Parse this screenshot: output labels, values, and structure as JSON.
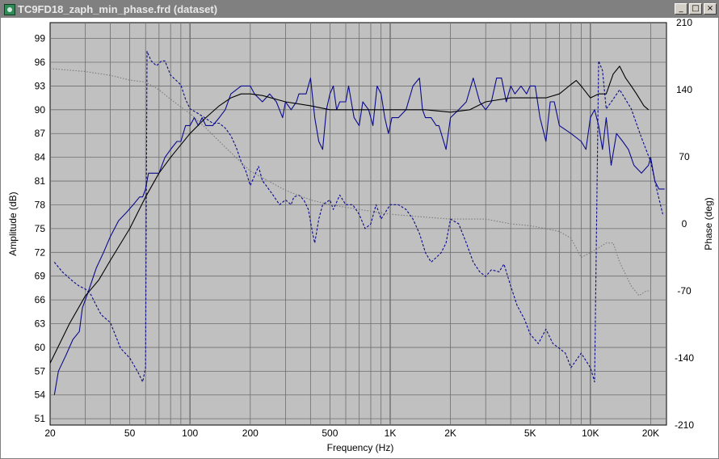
{
  "window": {
    "title": "TC9FD18_zaph_min_phase.frd (dataset)",
    "icon": "app-icon",
    "buttons": [
      {
        "name": "minimize-button",
        "glyph": "_"
      },
      {
        "name": "maximize-button",
        "glyph": "□"
      },
      {
        "name": "close-button",
        "glyph": "×"
      }
    ]
  },
  "colors": {
    "plot_bg": "#c0c0c0",
    "grid": "#6e6e6e",
    "blue": "#0a0a8c",
    "black": "#000000",
    "gray": "#7a7a7a"
  },
  "chart_data": {
    "type": "line",
    "xlabel": "Frequency (Hz)",
    "ylabel_left": "Amplitude (dB)",
    "ylabel_right": "Phase (deg)",
    "xscale": "log",
    "xlim": [
      20,
      24000
    ],
    "ylim_left": [
      50.2,
      101
    ],
    "ylim_right": [
      -210,
      210
    ],
    "grid": true,
    "x_ticks": [
      {
        "v": 20,
        "label": "20"
      },
      {
        "v": 50,
        "label": "50"
      },
      {
        "v": 100,
        "label": "100"
      },
      {
        "v": 200,
        "label": "200"
      },
      {
        "v": 500,
        "label": "500"
      },
      {
        "v": 1000,
        "label": "1K"
      },
      {
        "v": 2000,
        "label": "2K"
      },
      {
        "v": 5000,
        "label": "5K"
      },
      {
        "v": 10000,
        "label": "10K"
      },
      {
        "v": 20000,
        "label": "20K"
      }
    ],
    "y_ticks_left": [
      "99",
      "96",
      "93",
      "90",
      "87",
      "84",
      "81",
      "78",
      "75",
      "72",
      "69",
      "66",
      "63",
      "60",
      "57",
      "54",
      "51"
    ],
    "y_ticks_right": [
      "210",
      "140",
      "70",
      "0",
      "-70",
      "-140",
      "-210"
    ],
    "series": [
      {
        "axis": "left",
        "style": "solid",
        "color": "#0a0a8c",
        "points": [
          [
            21,
            54
          ],
          [
            22,
            57
          ],
          [
            24,
            59
          ],
          [
            26,
            61
          ],
          [
            28,
            62
          ],
          [
            29,
            65
          ],
          [
            31,
            67
          ],
          [
            34,
            70
          ],
          [
            37,
            72
          ],
          [
            40,
            74
          ],
          [
            44,
            76
          ],
          [
            48,
            77
          ],
          [
            52,
            78
          ],
          [
            56,
            79
          ],
          [
            58,
            79
          ],
          [
            60,
            80
          ],
          [
            62,
            82
          ],
          [
            67,
            82
          ],
          [
            70,
            82
          ],
          [
            75,
            84
          ],
          [
            80,
            85
          ],
          [
            86,
            86
          ],
          [
            90,
            86
          ],
          [
            95,
            88
          ],
          [
            100,
            88
          ],
          [
            105,
            89
          ],
          [
            110,
            88
          ],
          [
            115,
            89
          ],
          [
            120,
            88
          ],
          [
            130,
            88
          ],
          [
            140,
            89
          ],
          [
            150,
            90
          ],
          [
            160,
            92
          ],
          [
            180,
            93
          ],
          [
            200,
            93
          ],
          [
            210,
            92
          ],
          [
            230,
            91
          ],
          [
            250,
            92
          ],
          [
            270,
            91
          ],
          [
            290,
            89
          ],
          [
            300,
            91
          ],
          [
            320,
            90
          ],
          [
            340,
            91
          ],
          [
            350,
            92
          ],
          [
            370,
            92
          ],
          [
            380,
            92
          ],
          [
            400,
            94
          ],
          [
            420,
            89
          ],
          [
            440,
            86
          ],
          [
            460,
            85
          ],
          [
            480,
            90
          ],
          [
            500,
            92
          ],
          [
            520,
            93
          ],
          [
            540,
            90
          ],
          [
            560,
            91
          ],
          [
            600,
            91
          ],
          [
            620,
            93
          ],
          [
            660,
            89
          ],
          [
            700,
            88
          ],
          [
            730,
            91
          ],
          [
            780,
            90
          ],
          [
            820,
            88
          ],
          [
            860,
            93
          ],
          [
            900,
            92
          ],
          [
            940,
            89
          ],
          [
            980,
            87
          ],
          [
            1020,
            89
          ],
          [
            1100,
            89
          ],
          [
            1200,
            90
          ],
          [
            1300,
            93
          ],
          [
            1400,
            94
          ],
          [
            1450,
            90
          ],
          [
            1500,
            89
          ],
          [
            1600,
            89
          ],
          [
            1700,
            88
          ],
          [
            1750,
            88
          ],
          [
            1800,
            87
          ],
          [
            1900,
            85
          ],
          [
            2000,
            89
          ],
          [
            2200,
            90
          ],
          [
            2400,
            91
          ],
          [
            2600,
            94
          ],
          [
            2800,
            91
          ],
          [
            3000,
            90
          ],
          [
            3200,
            91
          ],
          [
            3400,
            94
          ],
          [
            3600,
            94
          ],
          [
            3800,
            91
          ],
          [
            4000,
            93
          ],
          [
            4200,
            92
          ],
          [
            4500,
            93
          ],
          [
            4800,
            92
          ],
          [
            5000,
            93
          ],
          [
            5300,
            93
          ],
          [
            5600,
            89
          ],
          [
            6000,
            86
          ],
          [
            6300,
            91
          ],
          [
            6600,
            91
          ],
          [
            7000,
            88
          ],
          [
            8000,
            87
          ],
          [
            9000,
            86
          ],
          [
            9500,
            85
          ],
          [
            10000,
            89
          ],
          [
            10500,
            90
          ],
          [
            11000,
            88
          ],
          [
            11500,
            85
          ],
          [
            12000,
            89
          ],
          [
            12700,
            83
          ],
          [
            13500,
            87
          ],
          [
            14500,
            86
          ],
          [
            15500,
            85
          ],
          [
            16500,
            83
          ],
          [
            18000,
            82
          ],
          [
            19500,
            83
          ],
          [
            20000,
            84
          ],
          [
            21000,
            81
          ],
          [
            22000,
            80
          ],
          [
            23500,
            80
          ]
        ]
      },
      {
        "axis": "right",
        "style": "dashed",
        "color": "#0a0a8c",
        "points": [
          [
            21,
            -40
          ],
          [
            23,
            -50
          ],
          [
            26,
            -60
          ],
          [
            28,
            -65
          ],
          [
            30,
            -68
          ],
          [
            32,
            -74
          ],
          [
            34,
            -85
          ],
          [
            36,
            -95
          ],
          [
            40,
            -103
          ],
          [
            45,
            -130
          ],
          [
            50,
            -140
          ],
          [
            55,
            -155
          ],
          [
            58,
            -165
          ],
          [
            60,
            -150
          ],
          [
            61,
            180
          ],
          [
            64,
            170
          ],
          [
            68,
            165
          ],
          [
            72,
            170
          ],
          [
            75,
            170
          ],
          [
            80,
            155
          ],
          [
            85,
            150
          ],
          [
            90,
            145
          ],
          [
            95,
            130
          ],
          [
            100,
            120
          ],
          [
            110,
            115
          ],
          [
            120,
            110
          ],
          [
            130,
            105
          ],
          [
            140,
            105
          ],
          [
            150,
            100
          ],
          [
            160,
            92
          ],
          [
            170,
            80
          ],
          [
            180,
            65
          ],
          [
            190,
            55
          ],
          [
            200,
            40
          ],
          [
            210,
            50
          ],
          [
            220,
            60
          ],
          [
            230,
            45
          ],
          [
            240,
            40
          ],
          [
            260,
            30
          ],
          [
            280,
            20
          ],
          [
            300,
            25
          ],
          [
            320,
            20
          ],
          [
            330,
            28
          ],
          [
            350,
            30
          ],
          [
            370,
            25
          ],
          [
            390,
            15
          ],
          [
            410,
            -10
          ],
          [
            420,
            -20
          ],
          [
            440,
            5
          ],
          [
            460,
            20
          ],
          [
            500,
            25
          ],
          [
            520,
            15
          ],
          [
            560,
            30
          ],
          [
            600,
            20
          ],
          [
            650,
            20
          ],
          [
            700,
            10
          ],
          [
            750,
            -5
          ],
          [
            800,
            0
          ],
          [
            850,
            20
          ],
          [
            900,
            5
          ],
          [
            1000,
            20
          ],
          [
            1100,
            20
          ],
          [
            1200,
            15
          ],
          [
            1300,
            5
          ],
          [
            1400,
            -10
          ],
          [
            1500,
            -30
          ],
          [
            1600,
            -40
          ],
          [
            1700,
            -35
          ],
          [
            1800,
            -30
          ],
          [
            1900,
            -20
          ],
          [
            2000,
            5
          ],
          [
            2200,
            0
          ],
          [
            2400,
            -20
          ],
          [
            2600,
            -40
          ],
          [
            2800,
            -50
          ],
          [
            3000,
            -55
          ],
          [
            3200,
            -48
          ],
          [
            3500,
            -50
          ],
          [
            3700,
            -42
          ],
          [
            4000,
            -65
          ],
          [
            4300,
            -85
          ],
          [
            4700,
            -100
          ],
          [
            5000,
            -115
          ],
          [
            5500,
            -125
          ],
          [
            6000,
            -110
          ],
          [
            6500,
            -125
          ],
          [
            7000,
            -130
          ],
          [
            7500,
            -135
          ],
          [
            8000,
            -150
          ],
          [
            9000,
            -135
          ],
          [
            10000,
            -150
          ],
          [
            10500,
            -165
          ],
          [
            11000,
            170
          ],
          [
            11500,
            160
          ],
          [
            12000,
            120
          ],
          [
            13000,
            130
          ],
          [
            14000,
            140
          ],
          [
            16000,
            120
          ],
          [
            18000,
            90
          ],
          [
            20000,
            65
          ],
          [
            21500,
            35
          ],
          [
            23000,
            10
          ]
        ]
      },
      {
        "axis": "left",
        "style": "solid",
        "color": "#000000",
        "points": [
          [
            20,
            58
          ],
          [
            25,
            63
          ],
          [
            30,
            66.5
          ],
          [
            35,
            68.5
          ],
          [
            40,
            71
          ],
          [
            50,
            75
          ],
          [
            60,
            79
          ],
          [
            70,
            82
          ],
          [
            80,
            84
          ],
          [
            100,
            87
          ],
          [
            120,
            89
          ],
          [
            140,
            90.5
          ],
          [
            160,
            91.5
          ],
          [
            180,
            92
          ],
          [
            200,
            92
          ],
          [
            230,
            91.8
          ],
          [
            300,
            91
          ],
          [
            400,
            90.5
          ],
          [
            500,
            90
          ],
          [
            700,
            90
          ],
          [
            1000,
            90
          ],
          [
            1500,
            90
          ],
          [
            2000,
            89.7
          ],
          [
            2500,
            90
          ],
          [
            3000,
            91
          ],
          [
            4000,
            91.5
          ],
          [
            5000,
            91.5
          ],
          [
            6000,
            91.5
          ],
          [
            7000,
            92
          ],
          [
            8000,
            93.2
          ],
          [
            8500,
            93.7
          ],
          [
            9000,
            93
          ],
          [
            10000,
            91.5
          ],
          [
            11000,
            92
          ],
          [
            12000,
            92
          ],
          [
            13000,
            94.5
          ],
          [
            14000,
            95.5
          ],
          [
            15000,
            94
          ],
          [
            16000,
            93
          ],
          [
            17000,
            92
          ],
          [
            18500,
            90.5
          ],
          [
            19500,
            90
          ]
        ]
      },
      {
        "axis": "right",
        "style": "dotted",
        "color": "#7a7a7a",
        "points": [
          [
            20,
            162
          ],
          [
            30,
            159
          ],
          [
            40,
            155
          ],
          [
            50,
            150
          ],
          [
            60,
            148
          ],
          [
            70,
            140
          ],
          [
            80,
            130
          ],
          [
            100,
            115
          ],
          [
            120,
            100
          ],
          [
            150,
            80
          ],
          [
            200,
            55
          ],
          [
            300,
            35
          ],
          [
            400,
            25
          ],
          [
            500,
            20
          ],
          [
            700,
            15
          ],
          [
            1000,
            10
          ],
          [
            1500,
            7
          ],
          [
            2000,
            5
          ],
          [
            3000,
            5
          ],
          [
            4000,
            0
          ],
          [
            5000,
            -2
          ],
          [
            6000,
            -5
          ],
          [
            7000,
            -8
          ],
          [
            8000,
            -15
          ],
          [
            9000,
            -35
          ],
          [
            10000,
            -30
          ],
          [
            11000,
            -25
          ],
          [
            12000,
            -20
          ],
          [
            13000,
            -20
          ],
          [
            14000,
            -40
          ],
          [
            16000,
            -65
          ],
          [
            17500,
            -75
          ],
          [
            19000,
            -70
          ],
          [
            20000,
            -70
          ]
        ]
      }
    ]
  }
}
